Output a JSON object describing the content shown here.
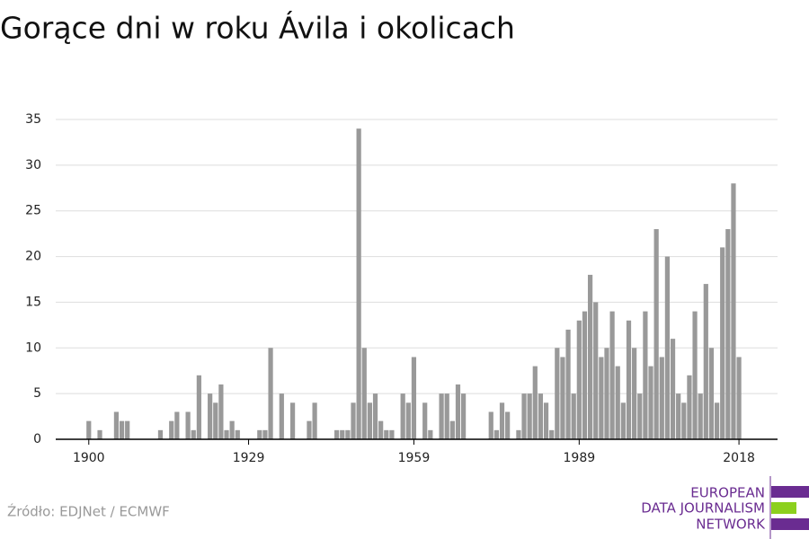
{
  "chart_data": {
    "type": "bar",
    "title": "Gorące dni w roku Ávila i okolicach",
    "x": [
      1900,
      1901,
      1902,
      1903,
      1904,
      1905,
      1906,
      1907,
      1908,
      1909,
      1910,
      1911,
      1912,
      1913,
      1914,
      1915,
      1916,
      1917,
      1918,
      1919,
      1920,
      1921,
      1922,
      1923,
      1924,
      1925,
      1926,
      1927,
      1928,
      1929,
      1930,
      1931,
      1932,
      1933,
      1934,
      1935,
      1936,
      1937,
      1938,
      1939,
      1940,
      1941,
      1942,
      1943,
      1944,
      1945,
      1946,
      1947,
      1948,
      1949,
      1950,
      1951,
      1952,
      1953,
      1954,
      1955,
      1956,
      1957,
      1958,
      1959,
      1960,
      1961,
      1962,
      1963,
      1964,
      1965,
      1966,
      1967,
      1968,
      1969,
      1970,
      1971,
      1972,
      1973,
      1974,
      1975,
      1976,
      1977,
      1978,
      1979,
      1980,
      1981,
      1982,
      1983,
      1984,
      1985,
      1986,
      1987,
      1988,
      1989,
      1990,
      1991,
      1992,
      1993,
      1994,
      1995,
      1996,
      1997,
      1998,
      1999,
      2000,
      2001,
      2002,
      2003,
      2004,
      2005,
      2006,
      2007,
      2008,
      2009,
      2010,
      2011,
      2012,
      2013,
      2014,
      2015,
      2016,
      2017,
      2018
    ],
    "values": [
      2,
      0,
      1,
      0,
      0,
      3,
      2,
      2,
      0,
      0,
      0,
      0,
      0,
      1,
      0,
      2,
      3,
      0,
      3,
      1,
      7,
      0,
      5,
      4,
      6,
      1,
      2,
      1,
      0,
      0,
      0,
      1,
      1,
      10,
      0,
      5,
      0,
      4,
      0,
      0,
      2,
      4,
      0,
      0,
      0,
      1,
      1,
      1,
      4,
      34,
      10,
      4,
      5,
      2,
      1,
      1,
      0,
      5,
      4,
      9,
      0,
      4,
      1,
      0,
      5,
      5,
      2,
      6,
      5,
      0,
      0,
      0,
      0,
      3,
      1,
      4,
      3,
      0,
      1,
      5,
      5,
      8,
      5,
      4,
      1,
      10,
      9,
      12,
      5,
      13,
      14,
      18,
      15,
      9,
      10,
      14,
      8,
      4,
      13,
      10,
      5,
      14,
      8,
      23,
      9,
      20,
      11,
      5,
      4,
      7,
      14,
      5,
      17,
      10,
      4,
      21,
      23,
      28,
      9
    ],
    "color": "#999999",
    "xlim": [
      1894,
      2025
    ],
    "xticks": [
      1900,
      1929,
      1959,
      1989,
      2018
    ],
    "ylim": [
      0,
      35
    ],
    "yticks": [
      0,
      5,
      10,
      15,
      20,
      25,
      30,
      35
    ],
    "grid": true,
    "source": "Źródło: EDJNet / ECMWF",
    "logo": [
      "EUROPEAN",
      "DATA JOURNALISM",
      "NETWORK"
    ]
  }
}
